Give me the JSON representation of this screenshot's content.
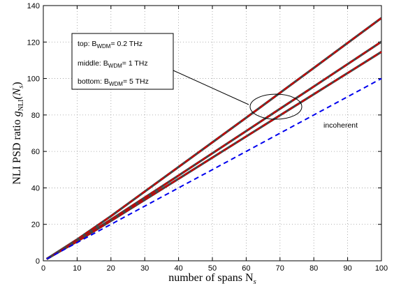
{
  "chart_data": {
    "type": "line",
    "title": "",
    "xlabel": "number of spans N",
    "xlabel_sub": "s",
    "ylabel": "NLI PSD ratio ",
    "ylabel_math": "g",
    "ylabel_sub": "NLI",
    "ylabel_suffix": "(N",
    "ylabel_suffix_sub": "s",
    "ylabel_close": ")",
    "xlim": [
      0,
      100
    ],
    "ylim": [
      0,
      140
    ],
    "xticks": [
      "0",
      "10",
      "20",
      "30",
      "40",
      "50",
      "60",
      "70",
      "80",
      "90",
      "100"
    ],
    "yticks": [
      "0",
      "20",
      "40",
      "60",
      "80",
      "100",
      "120",
      "140"
    ],
    "grid": true,
    "series": [
      {
        "color": "#cc0000",
        "style": "solid-with-dashed-overlay",
        "x": [
          1,
          10,
          20,
          40,
          60,
          80,
          100
        ],
        "values": [
          1,
          11.7,
          24.5,
          51.5,
          78.5,
          105.8,
          133.2
        ]
      },
      {
        "color": "#cc0000",
        "style": "solid-with-dashed-overlay",
        "x": [
          1,
          10,
          20,
          40,
          60,
          80,
          100
        ],
        "values": [
          1,
          10.9,
          22.6,
          46.8,
          71.2,
          95.6,
          120.2
        ]
      },
      {
        "color": "#cc0000",
        "style": "solid-with-dashed-overlay",
        "x": [
          1,
          10,
          20,
          40,
          60,
          80,
          100
        ],
        "values": [
          1,
          10.6,
          21.9,
          45.0,
          68.2,
          91.4,
          114.6
        ]
      },
      {
        "color": "#0000ee",
        "style": "dashed",
        "x": [
          1,
          100
        ],
        "values": [
          1,
          100
        ]
      }
    ],
    "annotations": {
      "legend_lines": [
        {
          "prefix": "top: B",
          "sub": "WDM",
          "suffix": "= 0.2 THz"
        },
        {
          "prefix": "middle: B",
          "sub": "WDM",
          "suffix": "= 1 THz"
        },
        {
          "prefix": "bottom: B",
          "sub": "WDM",
          "suffix": "= 5 THz"
        }
      ],
      "incoherent": "incoherent"
    }
  }
}
